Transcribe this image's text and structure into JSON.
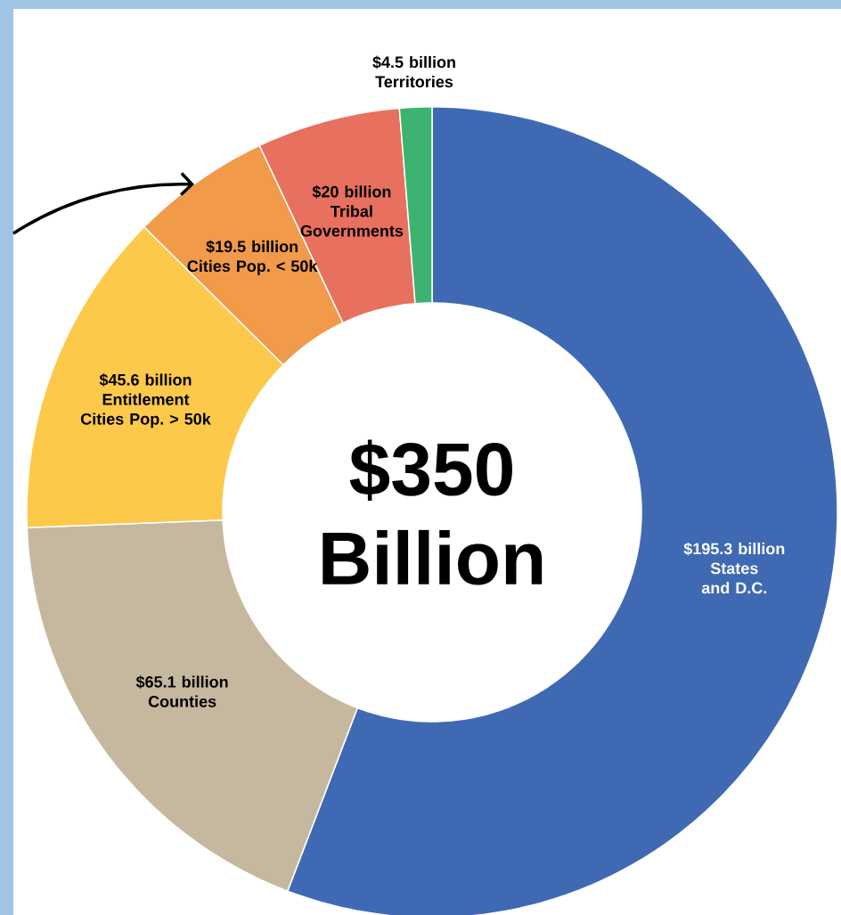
{
  "chart_data": {
    "type": "donut",
    "categories": [
      "States and D.C.",
      "Counties",
      "Entitlement Cities Pop. > 50k",
      "Cities Pop. < 50k",
      "Tribal Governments",
      "Territories"
    ],
    "values": [
      195.3,
      65.1,
      45.6,
      19.5,
      20,
      4.5
    ],
    "value_labels": [
      "$195.3 billion",
      "$65.1 billion",
      "$45.6 billion",
      "$19.5 billion",
      "$20 billion",
      "$4.5 billion"
    ],
    "colors": [
      "#3f6ab3",
      "#c6b79f",
      "#fcc94a",
      "#f09a4a",
      "#e8705f",
      "#3cb371"
    ],
    "annotations": [
      "$350 Billion"
    ]
  }
}
